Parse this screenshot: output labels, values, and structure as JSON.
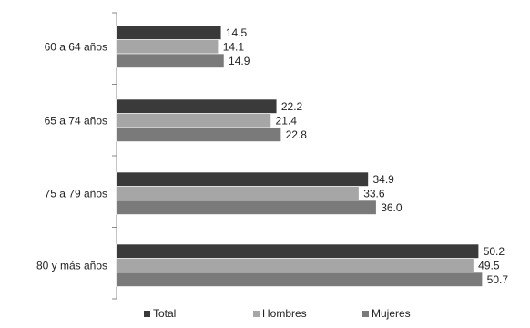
{
  "chart_data": {
    "type": "bar",
    "orientation": "horizontal",
    "categories": [
      "60 a 64 años",
      "65 a 74 años",
      "75 a 79 años",
      "80 y más años"
    ],
    "series": [
      {
        "name": "Total",
        "values": [
          14.5,
          22.2,
          34.9,
          50.2
        ],
        "color": "#3a3a3a"
      },
      {
        "name": "Hombres",
        "values": [
          14.1,
          21.4,
          33.6,
          49.5
        ],
        "color": "#a6a6a6"
      },
      {
        "name": "Mujeres",
        "values": [
          14.9,
          22.8,
          36.0,
          50.7
        ],
        "color": "#7a7a7a"
      }
    ],
    "value_labels": [
      [
        "14.5",
        "22.2",
        "34.9",
        "50.2"
      ],
      [
        "14.1",
        "21.4",
        "33.6",
        "49.5"
      ],
      [
        "14.9",
        "22.8",
        "36.0",
        "50.7"
      ]
    ],
    "xlim": [
      0,
      51.5
    ],
    "grid": false,
    "legend_position": "bottom"
  }
}
